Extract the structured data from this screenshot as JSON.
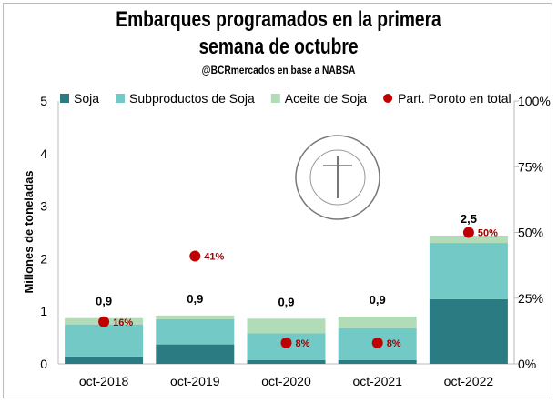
{
  "chart_data": {
    "type": "bar",
    "stacked": true,
    "title": "Embarques programados en la primera semana de octubre",
    "title_lines": [
      "Embarques programados en la primera",
      "semana de octubre"
    ],
    "subtitle": "@BCRmercados en base a NABSA",
    "ylabel": "Millones de toneladas",
    "ylim": [
      0,
      5
    ],
    "yticks": [
      "0",
      "1",
      "2",
      "3",
      "4",
      "5"
    ],
    "y2lim": [
      0,
      100
    ],
    "y2ticks": [
      "0%",
      "25%",
      "50%",
      "75%",
      "100%"
    ],
    "categories": [
      "oct-2018",
      "oct-2019",
      "oct-2020",
      "oct-2021",
      "oct-2022"
    ],
    "series": [
      {
        "name": "Soja",
        "color": "#2a7c82",
        "values": [
          0.14,
          0.37,
          0.07,
          0.07,
          1.23
        ]
      },
      {
        "name": "Subproductos de Soja",
        "color": "#73c9c6",
        "values": [
          0.61,
          0.48,
          0.51,
          0.61,
          1.07
        ]
      },
      {
        "name": "Aceite de Soja",
        "color": "#b2dbb7",
        "values": [
          0.12,
          0.07,
          0.28,
          0.22,
          0.14
        ]
      }
    ],
    "total_labels": [
      "0,9",
      "0,9",
      "0,9",
      "0,9",
      "2,5"
    ],
    "share_series": {
      "name": "Part. Poroto en total",
      "color": "#c00000",
      "values": [
        16,
        41,
        8,
        8,
        50
      ],
      "labels": [
        "16%",
        "41%",
        "8%",
        "8%",
        "50%"
      ],
      "axis": "right"
    },
    "legend": "top",
    "grid": false,
    "watermark": "BOLSA DE COMERCIO DE ROSARIO"
  }
}
